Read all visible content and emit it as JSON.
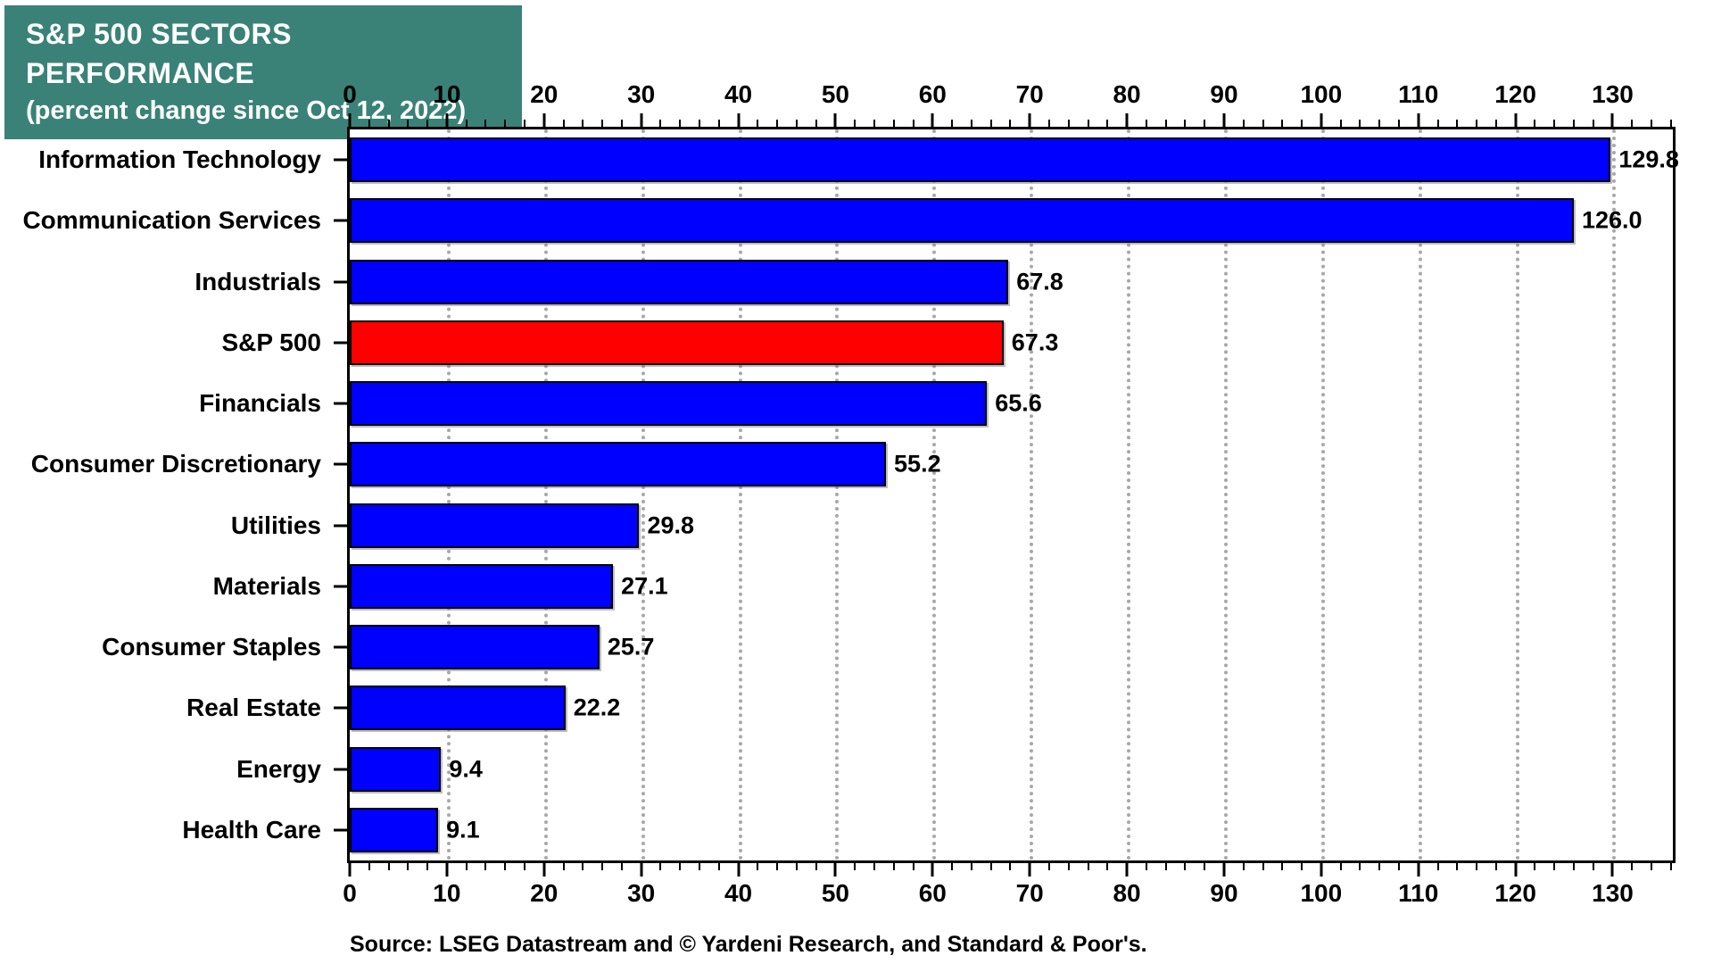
{
  "title": {
    "line1": "S&P 500 SECTORS PERFORMANCE",
    "line2": "(percent change since Oct 12, 2022)"
  },
  "source": "Source: LSEG Datastream and © Yardeni Research, and Standard & Poor's.",
  "colors": {
    "title_background": "#3A8278",
    "title_text": "#FFFFFF",
    "bar_blue": "#0000FF",
    "bar_highlight_red": "#FF0000",
    "gridline_gray": "#A8A8A8",
    "frame_black": "#000000"
  },
  "chart_data": {
    "type": "bar",
    "orientation": "horizontal",
    "title": "S&P 500 SECTORS PERFORMANCE (percent change since Oct 12, 2022)",
    "categories": [
      "Information Technology",
      "Communication Services",
      "Industrials",
      "S&P 500",
      "Financials",
      "Consumer Discretionary",
      "Utilities",
      "Materials",
      "Consumer Staples",
      "Real Estate",
      "Energy",
      "Health Care"
    ],
    "values": [
      129.8,
      126.0,
      67.8,
      67.3,
      65.6,
      55.2,
      29.8,
      27.1,
      25.7,
      22.2,
      9.4,
      9.1
    ],
    "value_labels": [
      "129.8",
      "126.0",
      "67.8",
      "67.3",
      "65.6",
      "55.2",
      "29.8",
      "27.1",
      "25.7",
      "22.2",
      "9.4",
      "9.1"
    ],
    "highlight_index": 3,
    "xlabel": "",
    "ylabel": "",
    "xlim": [
      0,
      136.2
    ],
    "x_major_ticks": [
      0,
      10,
      20,
      30,
      40,
      50,
      60,
      70,
      80,
      90,
      100,
      110,
      120,
      130
    ],
    "x_minor_tick_step": 2,
    "grid": "vertical dotted gridlines at major ticks",
    "axis_positions": [
      "top",
      "bottom"
    ],
    "legend": "none"
  }
}
